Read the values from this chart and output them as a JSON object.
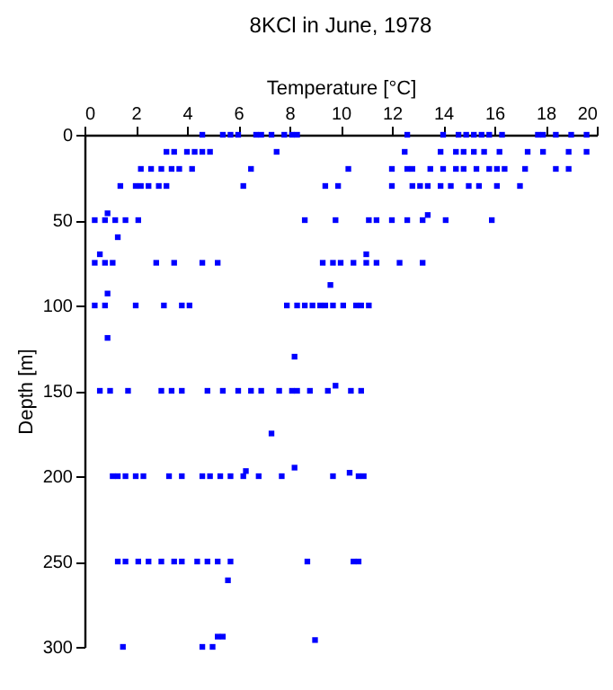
{
  "chart_data": {
    "type": "scatter",
    "title": "8KCl in June, 1978",
    "xlabel": "Temperature [°C]",
    "ylabel": "Depth [m]",
    "xlim": [
      0,
      20
    ],
    "xticks": [
      0,
      2,
      4,
      6,
      8,
      10,
      12,
      14,
      16,
      18,
      20
    ],
    "ylim": [
      300,
      0
    ],
    "yticks": [
      0,
      50,
      100,
      150,
      200,
      250,
      300
    ],
    "grid": false,
    "marker": "square",
    "series": [
      {
        "color": "#0000ff",
        "x": [
          4.6,
          5.4,
          5.7,
          6.0,
          6.7,
          6.9,
          7.3,
          7.8,
          8.1,
          8.3,
          12.6,
          14.0,
          14.6,
          14.9,
          15.2,
          15.5,
          15.8,
          16.3,
          17.7,
          17.9,
          18.4,
          19.0,
          19.6,
          3.2,
          3.5,
          4.0,
          4.3,
          4.6,
          4.9,
          7.5,
          12.5,
          13.9,
          14.5,
          14.8,
          15.2,
          15.6,
          16.2,
          17.3,
          17.9,
          18.9,
          19.6,
          2.2,
          2.6,
          3.0,
          3.4,
          3.7,
          4.2,
          6.5,
          10.3,
          12.0,
          12.6,
          12.8,
          13.5,
          14.0,
          14.5,
          14.8,
          15.3,
          15.8,
          16.1,
          16.4,
          17.2,
          18.4,
          18.9,
          1.4,
          2.0,
          2.2,
          2.5,
          2.9,
          3.2,
          6.2,
          9.4,
          9.9,
          12.0,
          12.8,
          13.1,
          13.4,
          13.9,
          14.3,
          15.0,
          15.4,
          16.1,
          17.0,
          0.9,
          13.4,
          0.4,
          0.8,
          1.2,
          1.6,
          2.1,
          8.6,
          9.8,
          11.1,
          11.4,
          12.0,
          12.6,
          13.2,
          14.1,
          15.9,
          1.3,
          0.6,
          11.0,
          0.4,
          0.8,
          1.1,
          2.8,
          3.5,
          4.6,
          5.2,
          9.3,
          9.7,
          10.0,
          10.5,
          11.0,
          11.4,
          12.3,
          13.2,
          9.6,
          0.9,
          0.4,
          0.8,
          2.0,
          3.1,
          3.8,
          4.1,
          7.9,
          8.3,
          8.6,
          8.9,
          9.2,
          9.4,
          9.7,
          10.1,
          10.6,
          10.8,
          11.1,
          0.9,
          8.2,
          0.6,
          1.0,
          1.7,
          3.0,
          3.4,
          3.8,
          4.8,
          5.4,
          6.0,
          6.5,
          6.9,
          7.6,
          8.1,
          8.3,
          8.8,
          9.5,
          10.4,
          10.8,
          9.8,
          7.3,
          8.2,
          6.3,
          10.35,
          1.1,
          1.3,
          1.6,
          2.0,
          2.3,
          3.3,
          3.8,
          4.6,
          4.9,
          5.3,
          5.7,
          6.2,
          6.8,
          7.7,
          9.7,
          10.7,
          10.9,
          1.3,
          1.6,
          2.1,
          2.5,
          3.0,
          3.5,
          3.8,
          4.4,
          4.8,
          5.2,
          5.7,
          8.7,
          10.5,
          10.7,
          5.6,
          5.2,
          5.4,
          9.0,
          1.5,
          4.6,
          5.0
        ],
        "values": [
          0,
          0,
          0,
          0,
          0,
          0,
          0,
          0,
          0,
          0,
          0,
          0,
          0,
          0,
          0,
          0,
          0,
          0,
          0,
          0,
          0,
          0,
          0,
          10,
          10,
          10,
          10,
          10,
          10,
          10,
          10,
          10,
          10,
          10,
          10,
          10,
          10,
          10,
          10,
          10,
          10,
          20,
          20,
          20,
          20,
          20,
          20,
          20,
          20,
          20,
          20,
          20,
          20,
          20,
          20,
          20,
          20,
          20,
          20,
          20,
          20,
          20,
          20,
          30,
          30,
          30,
          30,
          30,
          30,
          30,
          30,
          30,
          30,
          30,
          30,
          30,
          30,
          30,
          30,
          30,
          30,
          30,
          46,
          47,
          50,
          50,
          50,
          50,
          50,
          50,
          50,
          50,
          50,
          50,
          50,
          50,
          50,
          50,
          60,
          70,
          70,
          75,
          75,
          75,
          75,
          75,
          75,
          75,
          75,
          75,
          75,
          75,
          75,
          75,
          75,
          75,
          88,
          93,
          100,
          100,
          100,
          100,
          100,
          100,
          100,
          100,
          100,
          100,
          100,
          100,
          100,
          100,
          100,
          100,
          100,
          119,
          130,
          150,
          150,
          150,
          150,
          150,
          150,
          150,
          150,
          150,
          150,
          150,
          150,
          150,
          150,
          150,
          150,
          150,
          150,
          147,
          175,
          195,
          197,
          198,
          200,
          200,
          200,
          200,
          200,
          200,
          200,
          200,
          200,
          200,
          200,
          200,
          200,
          200,
          200,
          200,
          200,
          250,
          250,
          250,
          250,
          250,
          250,
          250,
          250,
          250,
          250,
          250,
          250,
          250,
          250,
          261,
          294,
          294,
          296,
          300,
          300,
          300
        ]
      }
    ]
  }
}
